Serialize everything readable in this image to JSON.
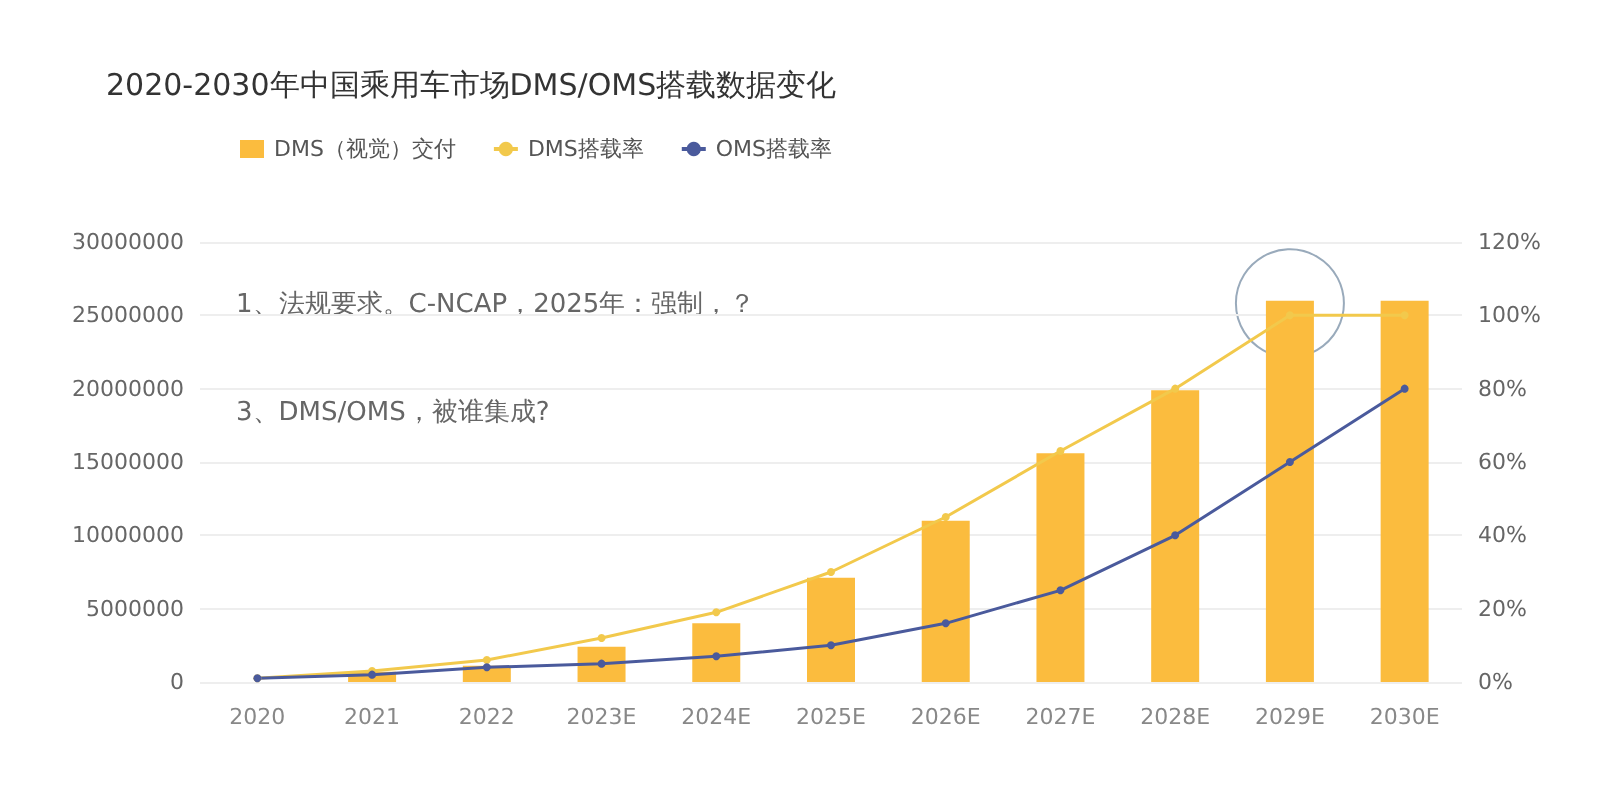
{
  "chart_data": {
    "type": "bar",
    "title": "2020-2030年中国乘用车市场DMS/OMS搭载数据变化",
    "categories": [
      "2020",
      "2021",
      "2022",
      "2023E",
      "2024E",
      "2025E",
      "2026E",
      "2027E",
      "2028E",
      "2029E",
      "2030E"
    ],
    "series": [
      {
        "name": "DMS（视觉）交付",
        "color": "#fbbc3e",
        "values": [
          0,
          700000,
          1100000,
          2400000,
          4000000,
          7100000,
          11000000,
          15600000,
          19900000,
          26000000,
          26000000
        ]
      },
      {
        "name": "DMS搭载率",
        "type": "line",
        "axis": "y2",
        "color": "#f2c94c",
        "values": [
          1,
          3,
          6,
          12,
          19,
          30,
          45,
          63,
          80,
          100,
          100
        ]
      },
      {
        "name": "OMS搭载率",
        "type": "line",
        "axis": "y2",
        "color": "#4a5a9c",
        "values": [
          1,
          2,
          4,
          5,
          7,
          10,
          16,
          25,
          40,
          60,
          80
        ]
      }
    ],
    "ylim": [
      0,
      30000000
    ],
    "yticks": [
      0,
      5000000,
      10000000,
      15000000,
      20000000,
      25000000,
      30000000
    ],
    "y2lim": [
      0,
      120
    ],
    "y2ticks": [
      {
        "value": 0,
        "label": "0%"
      },
      {
        "value": 20,
        "label": "20%"
      },
      {
        "value": 40,
        "label": "40%"
      },
      {
        "value": 60,
        "label": "60%"
      },
      {
        "value": 80,
        "label": "80%"
      },
      {
        "value": 100,
        "label": "100%"
      },
      {
        "value": 120,
        "label": "120%"
      }
    ],
    "annotations": [
      "1、法规要求。C-NCAP，2025年：强制，？",
      "3、DMS/OMS，被谁集成?"
    ],
    "grid": "y",
    "legend": "top left",
    "marker": "circle",
    "line_style": "solid"
  }
}
